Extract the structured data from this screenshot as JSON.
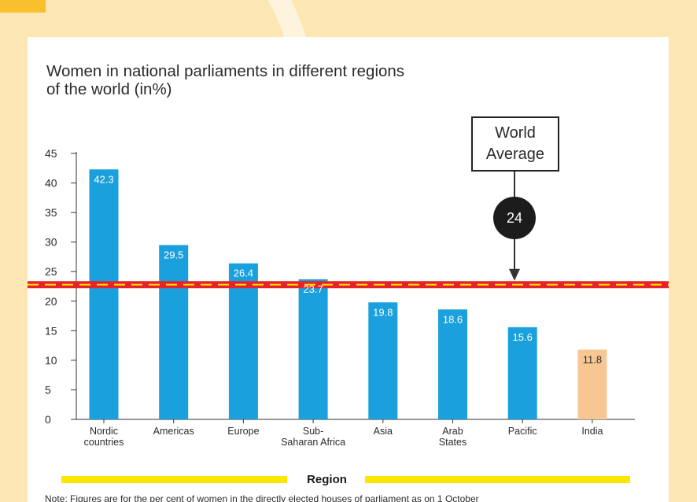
{
  "chart_data": {
    "type": "bar",
    "title": "Women in  national parliaments in different regions of the world (in%)",
    "categories": [
      [
        "Nordic",
        "countries"
      ],
      [
        "Americas"
      ],
      [
        "Europe"
      ],
      [
        "Sub-",
        "Saharan Africa"
      ],
      [
        "Asia"
      ],
      [
        "Arab",
        "States"
      ],
      [
        "Pacific"
      ],
      [
        "India"
      ]
    ],
    "values": [
      42.3,
      29.5,
      26.4,
      23.7,
      19.8,
      18.6,
      15.6,
      11.8
    ],
    "value_labels": [
      "42.3",
      "29.5",
      "26.4",
      "23.7",
      "19.8",
      "18.6",
      "15.6",
      "11.8"
    ],
    "ylim": [
      0,
      45
    ],
    "yticks": [
      "0",
      "5",
      "10",
      "15",
      "20",
      "25",
      "30",
      "35",
      "40",
      "45"
    ],
    "xlabel": "Region",
    "bar_color": "#1aa0dc",
    "highlight_color": "#f6c792",
    "highlight_index": 7,
    "reference_line": {
      "value": 24,
      "label_lines": [
        "World",
        "Average"
      ],
      "value_label": "24",
      "color": "#e8222a",
      "dash_color": "#ffe600"
    }
  },
  "note": "Note: Figures are for the per cent of women in the directly elected houses of parliament as on 1 October"
}
